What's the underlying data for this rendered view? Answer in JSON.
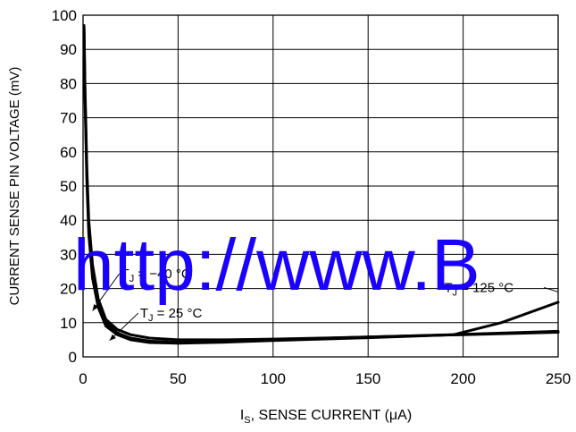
{
  "chart_data": {
    "type": "line",
    "title": "",
    "xlabel": "I",
    "xlabel_sub": "S",
    "xlabel_rest": ", SENSE CURRENT (μA)",
    "ylabel": "CURRENT SENSE PIN VOLTAGE (mV)",
    "xlim": [
      0,
      250
    ],
    "ylim": [
      0,
      100
    ],
    "x_ticks": [
      0,
      50,
      100,
      150,
      200,
      250
    ],
    "y_ticks": [
      0,
      10,
      20,
      30,
      40,
      50,
      60,
      70,
      80,
      90,
      100
    ],
    "grid": true,
    "series": [
      {
        "label": "TJ = −40 °C",
        "x": [
          0.5,
          1,
          2,
          3,
          5,
          8,
          12,
          18,
          25,
          35,
          50,
          75,
          100,
          150,
          200,
          250
        ],
        "y": [
          97,
          80,
          55,
          40,
          27,
          17,
          11,
          8,
          6.5,
          5.5,
          5,
          5,
          5.2,
          5.8,
          6.5,
          7.2
        ]
      },
      {
        "label": "TJ = 25 °C",
        "x": [
          0.5,
          1,
          2,
          3,
          5,
          8,
          12,
          18,
          25,
          35,
          50,
          75,
          100,
          150,
          200,
          250
        ],
        "y": [
          96,
          78,
          53,
          38,
          25,
          15.5,
          10,
          7,
          5.5,
          4.6,
          4.3,
          4.5,
          5,
          5.8,
          6.6,
          7.5
        ]
      },
      {
        "label": "TJ = 125 °C",
        "x": [
          0.5,
          1,
          2,
          3,
          5,
          8,
          12,
          18,
          25,
          35,
          50,
          75,
          100,
          150,
          195,
          220,
          250
        ],
        "y": [
          95,
          76,
          51,
          36,
          23,
          14.5,
          9,
          6.5,
          5,
          4.2,
          4,
          4.3,
          4.8,
          5.6,
          6.5,
          10,
          16
        ]
      }
    ],
    "annotations": [
      {
        "prefix": "T",
        "sub": "J",
        "suffix": " = −40 °C",
        "x": 20,
        "y": 23,
        "arrow_to": [
          5,
          13.5
        ]
      },
      {
        "prefix": "T",
        "sub": "J",
        "suffix": " = 25 °C",
        "x": 30,
        "y": 11.5,
        "arrow_to": [
          14,
          4.8
        ]
      },
      {
        "prefix": "T",
        "sub": "J",
        "suffix": " = 125 °C",
        "x": 190,
        "y": 19,
        "arrow_to": [
          250,
          19
        ]
      }
    ],
    "watermark": "http://www.B"
  }
}
